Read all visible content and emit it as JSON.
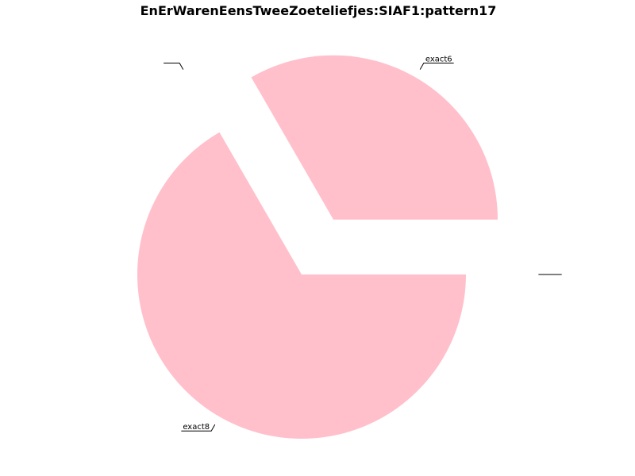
{
  "chart_data": {
    "type": "pie",
    "title": "EnErWarenEensTweeZoeteliefjes:SIAF1:pattern17",
    "start_angle_deg": 0,
    "direction": "counterclockwise",
    "slices": [
      {
        "label": "exact6",
        "value": 1,
        "color": "#ffc0cb",
        "exploded": true
      },
      {
        "label": "",
        "value": 0,
        "color": "#ffc0cb",
        "exploded": true
      },
      {
        "label": "exact8",
        "value": 2,
        "color": "#ffc0cb",
        "exploded": false
      },
      {
        "label": "",
        "value": 0,
        "color": "#ffc0cb",
        "exploded": true
      }
    ]
  }
}
